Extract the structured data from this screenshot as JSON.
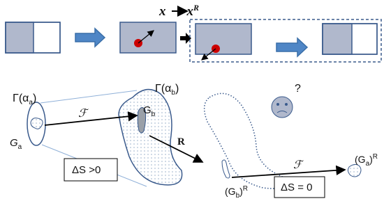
{
  "header": {
    "left": "x",
    "right": "x",
    "right_sup": "R"
  },
  "labels": {
    "gamma_a": {
      "base": "Γ(α",
      "sub": "a",
      "end": ")"
    },
    "gamma_b": {
      "base": "Γ(α",
      "sub": "b",
      "end": ")"
    },
    "g_b": {
      "base": "G",
      "sub": "b"
    },
    "g_a": {
      "base": "G",
      "sub": "a"
    },
    "f_first": "ℱ",
    "r": "R",
    "ds_positive": "ΔS >0",
    "g_b_r": {
      "open": "(G",
      "sub": "b",
      "close": ")",
      "sup": "R"
    },
    "f_second": "ℱ",
    "ds_zero": "ΔS = 0",
    "g_a_r": {
      "open": "(G",
      "sub": "a",
      "close": ")",
      "sup": "R"
    },
    "question": "?"
  }
}
